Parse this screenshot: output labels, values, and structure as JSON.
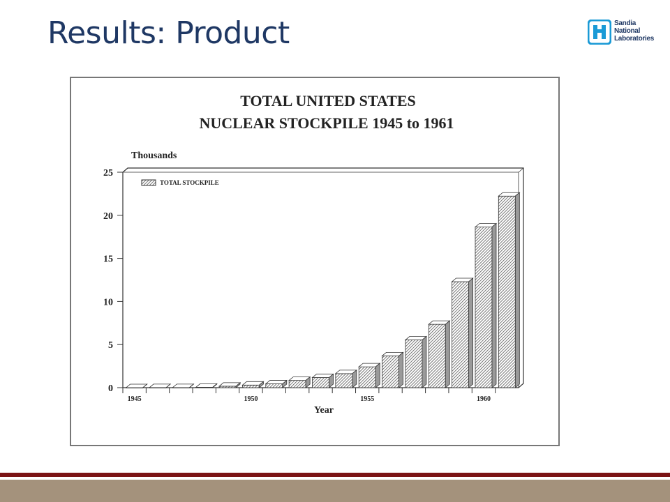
{
  "slide": {
    "title": "Results: Product",
    "logo": [
      "Sandia",
      "National",
      "Laboratories"
    ]
  },
  "chart_data": {
    "type": "bar",
    "title": [
      "TOTAL UNITED STATES",
      "NUCLEAR STOCKPILE 1945 to 1961"
    ],
    "y_label": "Thousands",
    "x_label": "Year",
    "categories": [
      "1945",
      null,
      null,
      null,
      null,
      "1950",
      null,
      null,
      null,
      null,
      "1955",
      null,
      null,
      null,
      null,
      "1960",
      null
    ],
    "series": [
      {
        "name": "TOTAL STOCKPILE",
        "color": "#9a9a9a",
        "values": [
          0.002,
          0.009,
          0.013,
          0.05,
          0.17,
          0.3,
          0.44,
          0.84,
          1.17,
          1.63,
          2.42,
          3.69,
          5.54,
          7.35,
          12.3,
          18.64,
          22.23
        ]
      }
    ],
    "ylim": [
      0,
      25
    ],
    "yticks": [
      0,
      5,
      10,
      15,
      20,
      25
    ],
    "legend": "top-left"
  }
}
